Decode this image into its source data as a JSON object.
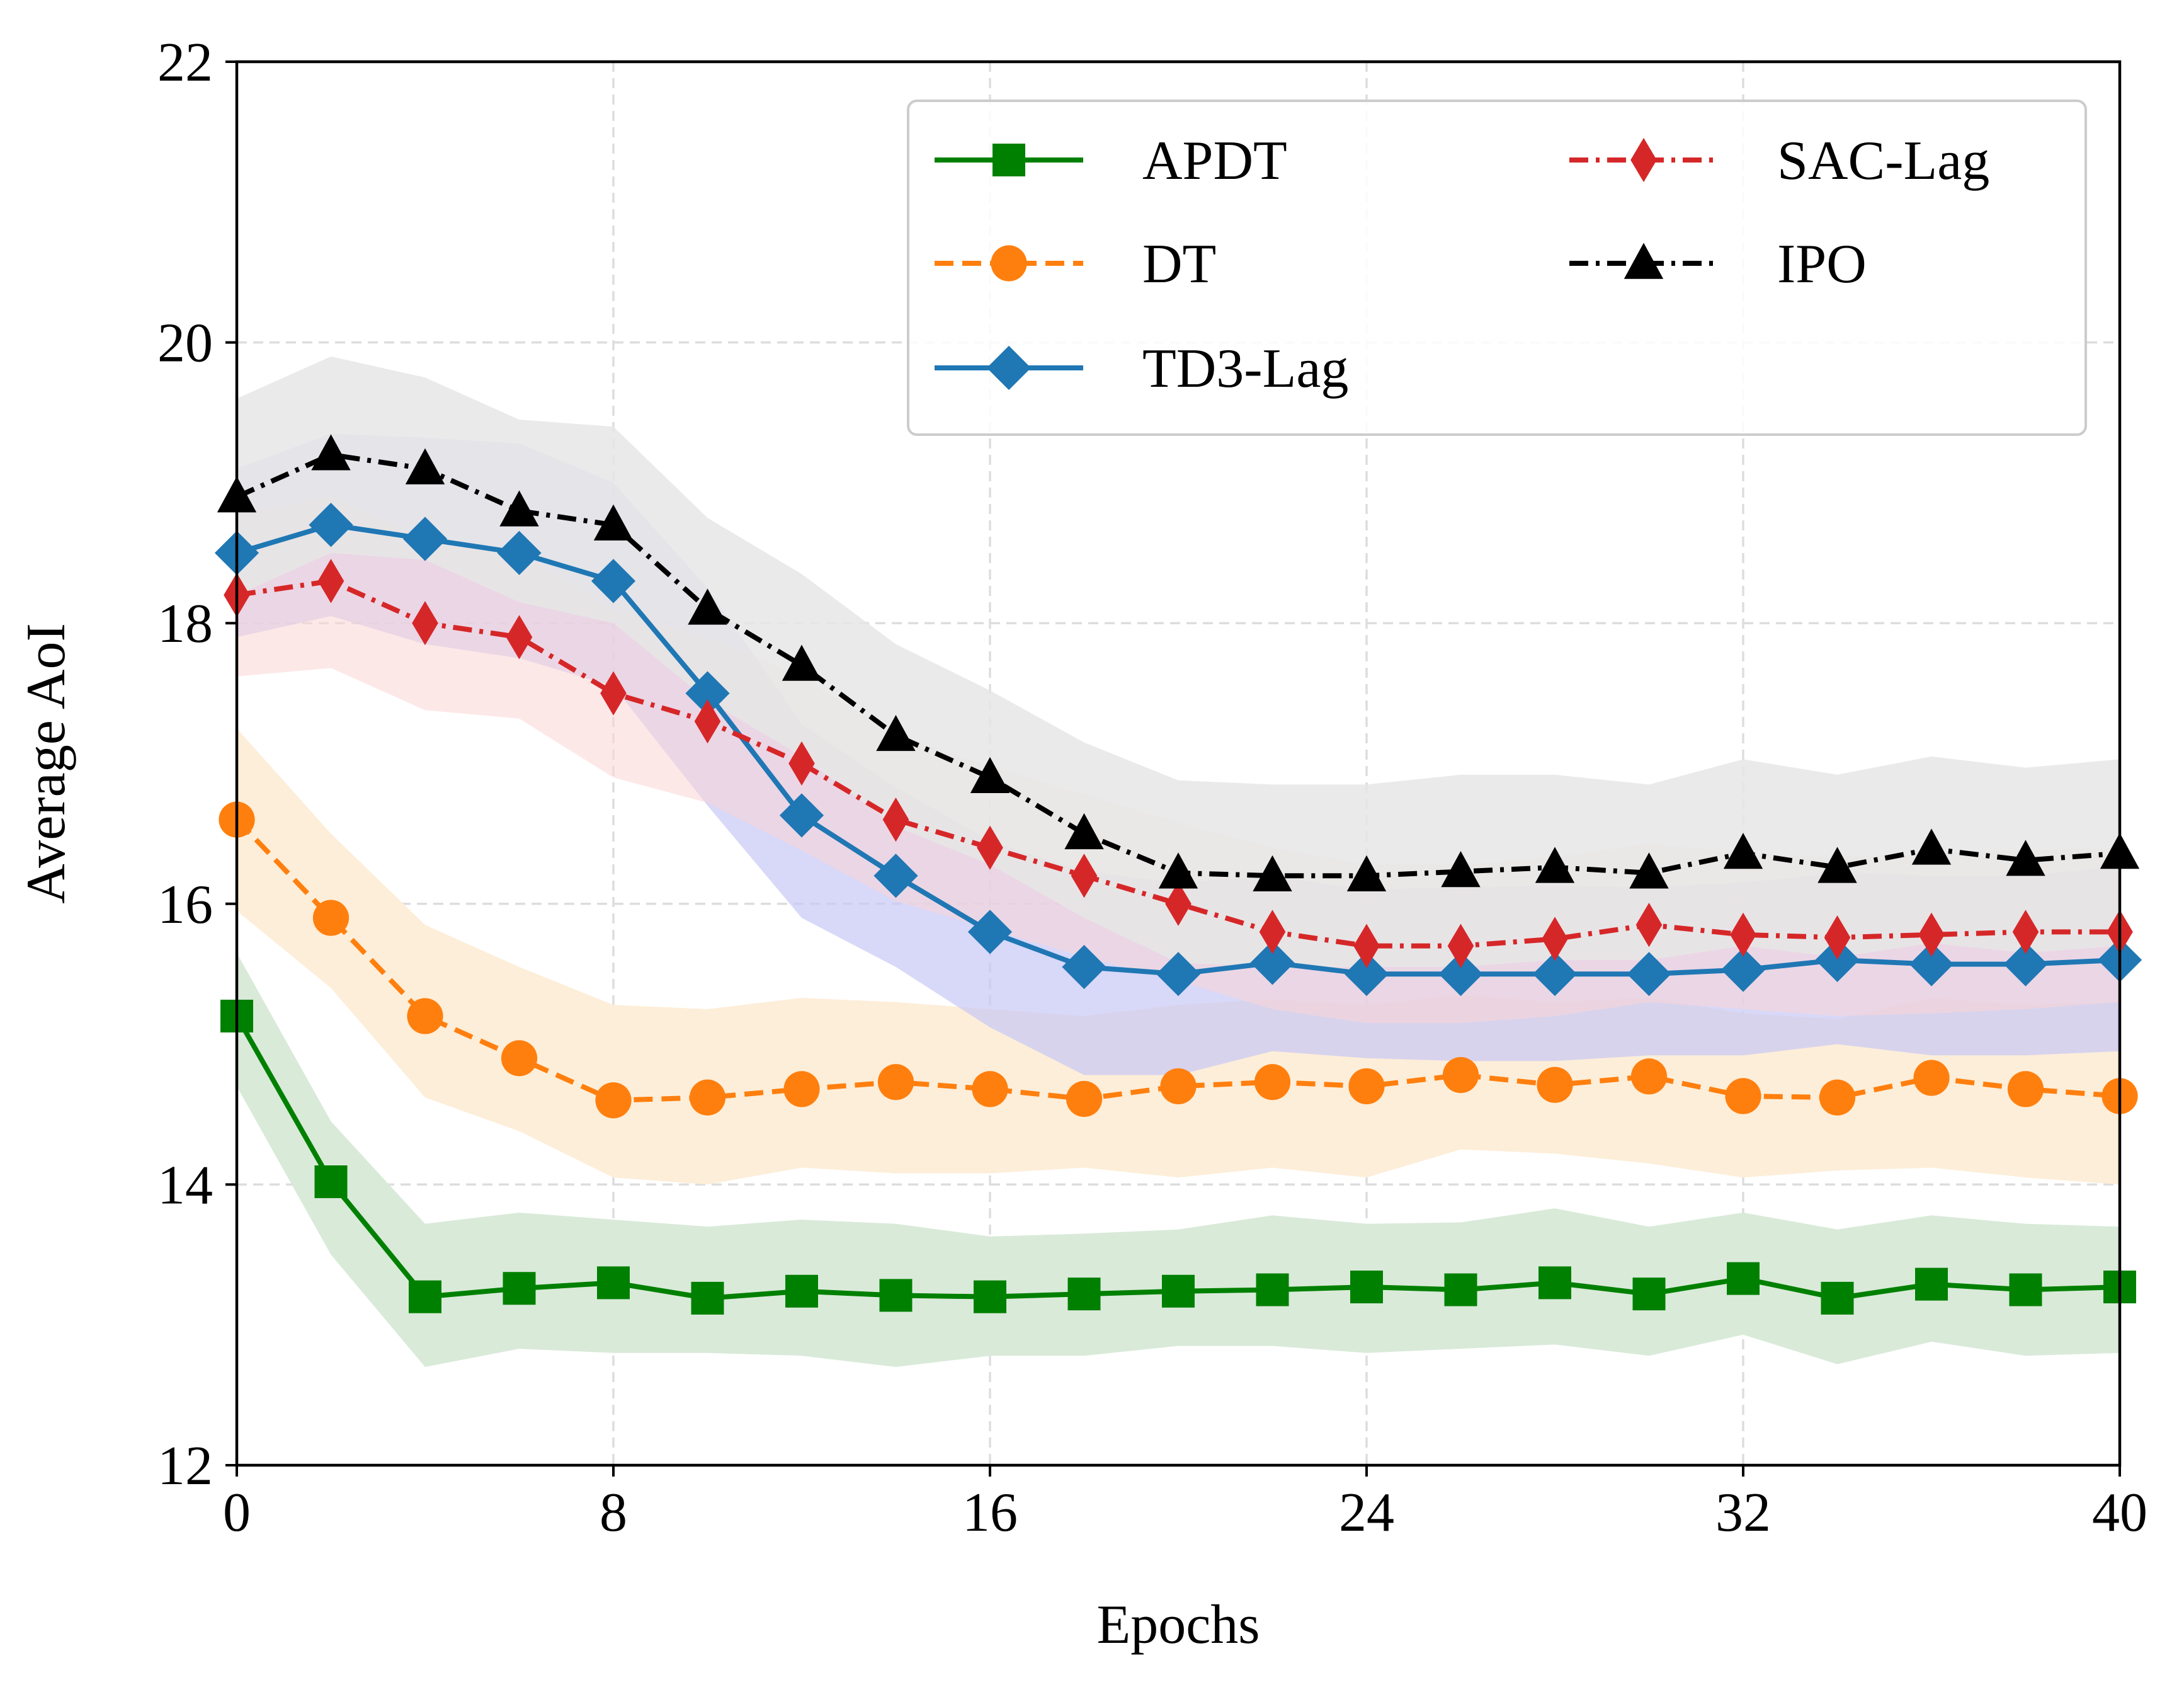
{
  "chart_data": {
    "type": "line",
    "title": "",
    "xlabel": "Epochs",
    "ylabel": "Average AoI",
    "xlim": [
      0,
      40
    ],
    "ylim": [
      12,
      22
    ],
    "xticks": [
      0,
      8,
      16,
      24,
      32,
      40
    ],
    "yticks": [
      12,
      14,
      16,
      18,
      20,
      22
    ],
    "grid": true,
    "legend": {
      "position": "top-right",
      "columns": 2
    },
    "x": [
      0,
      2,
      4,
      6,
      8,
      10,
      12,
      14,
      16,
      18,
      20,
      22,
      24,
      26,
      28,
      30,
      32,
      34,
      36,
      38,
      40
    ],
    "series": [
      {
        "name": "APDT",
        "color": "#008000",
        "marker": "square",
        "dash": "solid",
        "band_color": "#d9ead9",
        "values": [
          15.2,
          14.02,
          13.2,
          13.26,
          13.3,
          13.19,
          13.24,
          13.21,
          13.2,
          13.22,
          13.24,
          13.25,
          13.27,
          13.25,
          13.3,
          13.22,
          13.33,
          13.19,
          13.29,
          13.25,
          13.27
        ],
        "lower": [
          14.7,
          13.5,
          12.7,
          12.83,
          12.8,
          12.8,
          12.78,
          12.7,
          12.78,
          12.78,
          12.85,
          12.85,
          12.8,
          12.83,
          12.86,
          12.78,
          12.93,
          12.72,
          12.88,
          12.78,
          12.8
        ],
        "upper": [
          15.65,
          14.45,
          13.72,
          13.8,
          13.75,
          13.7,
          13.75,
          13.72,
          13.63,
          13.65,
          13.68,
          13.78,
          13.72,
          13.73,
          13.83,
          13.7,
          13.8,
          13.68,
          13.78,
          13.72,
          13.7
        ]
      },
      {
        "name": "DT",
        "color": "#ff7f0e",
        "marker": "circle",
        "dash": "dashed",
        "band_color": "#fdeed9",
        "values": [
          16.6,
          15.9,
          15.2,
          14.9,
          14.6,
          14.62,
          14.68,
          14.73,
          14.68,
          14.61,
          14.7,
          14.73,
          14.7,
          14.78,
          14.71,
          14.77,
          14.63,
          14.62,
          14.76,
          14.68,
          14.63
        ],
        "lower": [
          15.95,
          15.4,
          14.62,
          14.38,
          14.05,
          14.0,
          14.12,
          14.08,
          14.08,
          14.12,
          14.05,
          14.12,
          14.05,
          14.25,
          14.22,
          14.15,
          14.05,
          14.1,
          14.12,
          14.05,
          14.0
        ],
        "upper": [
          17.25,
          16.5,
          15.85,
          15.55,
          15.28,
          15.25,
          15.33,
          15.3,
          15.25,
          15.2,
          15.28,
          15.32,
          15.28,
          15.35,
          15.3,
          15.33,
          15.22,
          15.18,
          15.33,
          15.28,
          15.3
        ]
      },
      {
        "name": "TD3-Lag",
        "color": "#1f77b4",
        "marker": "diamond",
        "dash": "solid",
        "band_color": "#c8c8f5",
        "values": [
          18.5,
          18.7,
          18.6,
          18.5,
          18.3,
          17.5,
          16.63,
          16.2,
          15.8,
          15.55,
          15.5,
          15.58,
          15.5,
          15.5,
          15.5,
          15.5,
          15.53,
          15.6,
          15.57,
          15.57,
          15.6
        ],
        "lower": [
          17.9,
          18.05,
          17.85,
          17.75,
          17.55,
          16.7,
          15.9,
          15.55,
          15.12,
          14.78,
          14.78,
          14.95,
          14.9,
          14.88,
          14.88,
          14.92,
          14.92,
          15.0,
          14.92,
          14.92,
          14.95
        ],
        "upper": [
          19.1,
          19.35,
          19.32,
          19.28,
          19.0,
          18.25,
          17.28,
          16.83,
          16.45,
          16.23,
          16.15,
          16.2,
          16.1,
          16.12,
          16.13,
          16.12,
          16.15,
          16.22,
          16.2,
          16.2,
          16.27
        ]
      },
      {
        "name": "SAC-Lag",
        "color": "#d62728",
        "marker": "thin_diamond",
        "dash": "dashdot",
        "band_color": "#fbd6d6",
        "values": [
          18.2,
          18.3,
          18.0,
          17.9,
          17.5,
          17.3,
          17.0,
          16.6,
          16.4,
          16.2,
          16.0,
          15.8,
          15.7,
          15.7,
          15.75,
          15.85,
          15.78,
          15.76,
          15.78,
          15.8,
          15.8
        ],
        "lower": [
          17.62,
          17.68,
          17.38,
          17.32,
          16.9,
          16.72,
          16.38,
          16.02,
          15.82,
          15.62,
          15.45,
          15.25,
          15.15,
          15.15,
          15.2,
          15.3,
          15.25,
          15.2,
          15.22,
          15.25,
          15.3
        ],
        "upper": [
          18.78,
          18.9,
          18.6,
          18.5,
          18.1,
          17.9,
          17.62,
          17.2,
          16.98,
          16.78,
          16.58,
          16.4,
          16.28,
          16.28,
          16.33,
          16.43,
          16.36,
          16.33,
          16.36,
          16.38,
          16.4
        ]
      },
      {
        "name": "IPO",
        "color": "#000000",
        "marker": "triangle",
        "dash": "dashdot",
        "band_color": "#e6e6e6",
        "values": [
          18.9,
          19.2,
          19.1,
          18.8,
          18.7,
          18.1,
          17.7,
          17.2,
          16.9,
          16.5,
          16.22,
          16.2,
          16.2,
          16.23,
          16.26,
          16.22,
          16.36,
          16.26,
          16.39,
          16.31,
          16.36
        ],
        "lower": [
          18.2,
          18.5,
          18.45,
          18.15,
          18.0,
          17.45,
          17.05,
          16.55,
          16.28,
          15.9,
          15.58,
          15.55,
          15.55,
          15.55,
          15.6,
          15.6,
          15.7,
          15.62,
          15.72,
          15.65,
          15.7
        ],
        "upper": [
          19.6,
          19.9,
          19.75,
          19.45,
          19.4,
          18.75,
          18.35,
          17.85,
          17.52,
          17.15,
          16.88,
          16.85,
          16.85,
          16.92,
          16.92,
          16.85,
          17.03,
          16.92,
          17.05,
          16.97,
          17.03
        ]
      }
    ]
  }
}
